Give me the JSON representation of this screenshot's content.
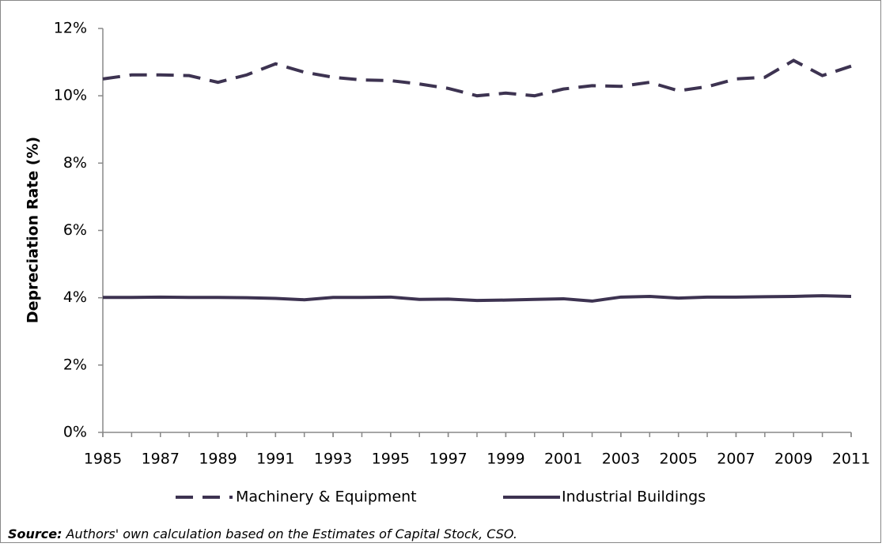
{
  "chart_data": {
    "type": "line",
    "y_label": "Depreciation Rate (%)",
    "x": [
      1985,
      1986,
      1987,
      1988,
      1989,
      1990,
      1991,
      1992,
      1993,
      1994,
      1995,
      1996,
      1997,
      1998,
      1999,
      2000,
      2001,
      2002,
      2003,
      2004,
      2005,
      2006,
      2007,
      2008,
      2009,
      2010,
      2011
    ],
    "series": [
      {
        "name": "Machinery & Equipment",
        "color": "#3d3351",
        "dash": true,
        "values": [
          10.5,
          10.62,
          10.62,
          10.6,
          10.4,
          10.62,
          10.95,
          10.7,
          10.55,
          10.47,
          10.45,
          10.35,
          10.22,
          10.0,
          10.08,
          10.0,
          10.2,
          10.3,
          10.28,
          10.4,
          10.15,
          10.27,
          10.5,
          10.55,
          11.05,
          10.6,
          10.88
        ]
      },
      {
        "name": "Industrial Buildings",
        "color": "#3d3351",
        "dash": false,
        "values": [
          4.01,
          4.01,
          4.02,
          4.01,
          4.01,
          4.0,
          3.98,
          3.94,
          4.01,
          4.01,
          4.02,
          3.95,
          3.96,
          3.92,
          3.93,
          3.95,
          3.97,
          3.9,
          4.02,
          4.04,
          3.99,
          4.02,
          4.02,
          4.03,
          4.04,
          4.06,
          4.04
        ]
      }
    ],
    "xlim": [
      1985,
      2011
    ],
    "xticks": [
      1985,
      1987,
      1989,
      1991,
      1993,
      1995,
      1997,
      1999,
      2001,
      2003,
      2005,
      2007,
      2009,
      2011
    ],
    "ylim": [
      0,
      12
    ],
    "yticks": [
      {
        "value": 0,
        "label": "0%"
      },
      {
        "value": 2,
        "label": "2%"
      },
      {
        "value": 4,
        "label": "4%"
      },
      {
        "value": 6,
        "label": "6%"
      },
      {
        "value": 8,
        "label": "8%"
      },
      {
        "value": 10,
        "label": "10%"
      },
      {
        "value": 12,
        "label": "12%"
      }
    ],
    "grid": false,
    "legend": "bottom",
    "source_label": "Source:",
    "source_text": "Authors' own calculation based on the Estimates of Capital Stock, CSO."
  }
}
